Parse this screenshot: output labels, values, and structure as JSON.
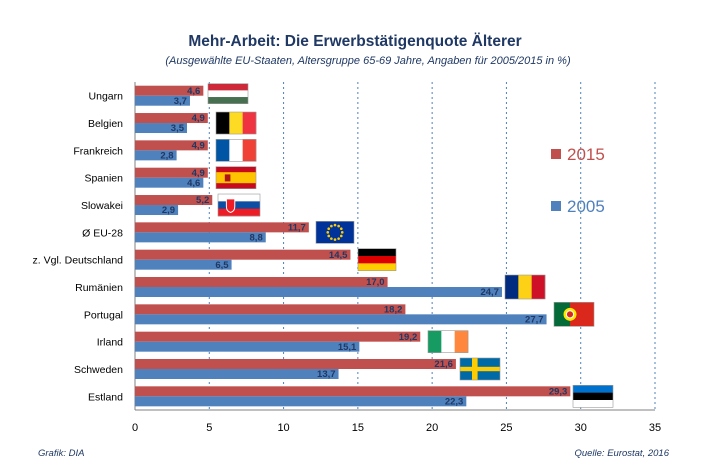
{
  "chart_data": {
    "type": "bar",
    "orientation": "horizontal",
    "title": "Mehr-Arbeit: Die Erwerbstätigenquote Älterer",
    "subtitle": "(Ausgewählte EU-Staaten, Altersgruppe 65-69 Jahre, Angaben für 2005/2015 in %)",
    "categories": [
      "Ungarn",
      "Belgien",
      "Frankreich",
      "Spanien",
      "Slowakei",
      "Ø EU-28",
      "z. Vgl. Deutschland",
      "Rumänien",
      "Portugal",
      "Irland",
      "Schweden",
      "Estland"
    ],
    "series": [
      {
        "name": "2015",
        "color": "#c0504d",
        "values": [
          4.6,
          4.9,
          4.9,
          4.9,
          5.2,
          11.7,
          14.5,
          17.0,
          18.2,
          19.2,
          21.6,
          29.3
        ],
        "labels": [
          "4,6",
          "4,9",
          "4,9",
          "4,9",
          "5,2",
          "11,7",
          "14,5",
          "17,0",
          "18,2",
          "19,2",
          "21,6",
          "29,3"
        ]
      },
      {
        "name": "2005",
        "color": "#4f81bd",
        "values": [
          3.7,
          3.5,
          2.8,
          4.6,
          2.9,
          8.8,
          6.5,
          24.7,
          27.7,
          15.1,
          13.7,
          22.3
        ],
        "labels": [
          "3,7",
          "3,5",
          "2,8",
          "4,6",
          "2,9",
          "8,8",
          "6,5",
          "24,7",
          "27,7",
          "15,1",
          "13,7",
          "22,3"
        ]
      }
    ],
    "xlim": [
      0,
      35
    ],
    "ticks": [
      "0",
      "5",
      "10",
      "15",
      "20",
      "25",
      "30",
      "35"
    ],
    "grid": true,
    "legend": "right",
    "flags": [
      "hungary",
      "belgium",
      "france",
      "spain",
      "slovakia",
      "eu",
      "germany",
      "romania",
      "portugal",
      "ireland",
      "sweden",
      "estonia"
    ]
  },
  "footer": {
    "left": "Grafik: DIA",
    "right": "Quelle: Eurostat, 2016"
  }
}
